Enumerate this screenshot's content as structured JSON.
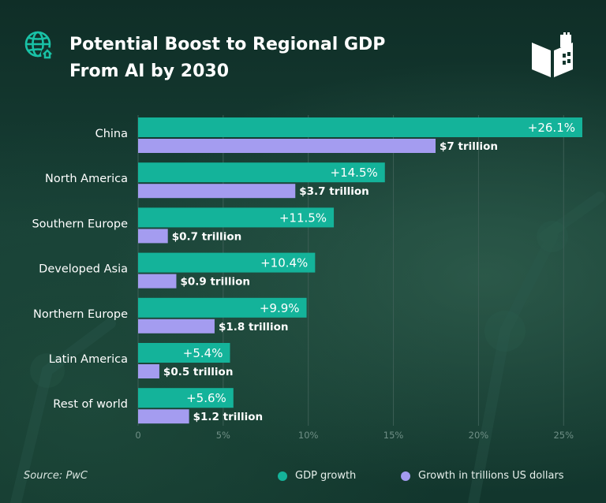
{
  "title_line1": "Potential Boost to Regional GDP",
  "title_line2": "From AI by 2030",
  "source": "Source: PwC",
  "icons": {
    "header": "globe-icon",
    "brand": "open-book-building-logo"
  },
  "colors": {
    "gdp": "#14b39a",
    "usd": "#a49cf0",
    "tick": "#6f8f86",
    "grid": "#3c5e55"
  },
  "chart_data": {
    "type": "bar",
    "orientation": "horizontal",
    "categories": [
      "China",
      "North America",
      "Southern Europe",
      "Developed Asia",
      "Northern Europe",
      "Latin America",
      "Rest of world"
    ],
    "series": [
      {
        "name": "GDP growth",
        "unit": "%",
        "values": [
          26.1,
          14.5,
          11.5,
          10.4,
          9.9,
          5.4,
          5.6
        ],
        "labels": [
          "+26.1%",
          "+14.5%",
          "+11.5%",
          "+10.4%",
          "+9.9%",
          "+5.4%",
          "+5.6%"
        ]
      },
      {
        "name": "Growth in trillions US dollars",
        "unit": "trillion USD",
        "values": [
          7,
          3.7,
          0.7,
          0.9,
          1.8,
          0.5,
          1.2
        ],
        "labels": [
          "$7 trillion",
          "$3.7 trillion",
          "$0.7 trillion",
          "$0.9 trillion",
          "$1.8 trillion",
          "$0.5 trillion",
          "$1.2 trillion"
        ]
      }
    ],
    "xticks": [
      "0",
      "5%",
      "10%",
      "15%",
      "20%",
      "25%"
    ],
    "xlim": [
      0,
      26.1
    ],
    "grid": true,
    "legend": "bottom-right"
  }
}
